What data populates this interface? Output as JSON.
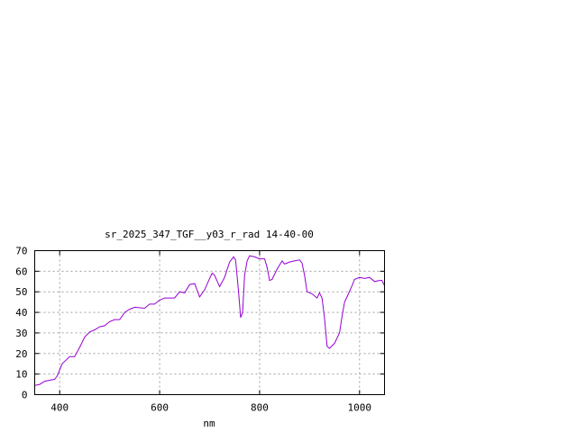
{
  "chart_data": {
    "type": "line",
    "title": "sr_2025_347_TGF__y03_r_rad 14-40-00",
    "xlabel": "nm",
    "ylabel": "",
    "xlim": [
      350,
      1050
    ],
    "ylim": [
      0,
      70
    ],
    "xticks": [
      400,
      600,
      800,
      1000
    ],
    "yticks": [
      0,
      10,
      20,
      30,
      40,
      50,
      60,
      70
    ],
    "grid": true,
    "color": "#9400d3",
    "x": [
      350,
      360,
      370,
      380,
      390,
      395,
      400,
      405,
      420,
      430,
      440,
      450,
      460,
      470,
      480,
      490,
      500,
      510,
      520,
      530,
      540,
      550,
      570,
      580,
      590,
      600,
      610,
      620,
      630,
      640,
      650,
      660,
      670,
      680,
      690,
      700,
      705,
      710,
      720,
      730,
      740,
      748,
      752,
      758,
      762,
      766,
      770,
      775,
      780,
      790,
      800,
      810,
      815,
      820,
      825,
      835,
      845,
      850,
      860,
      870,
      880,
      885,
      890,
      895,
      905,
      915,
      920,
      925,
      930,
      935,
      940,
      950,
      960,
      965,
      970,
      975,
      985,
      990,
      1000,
      1010,
      1020,
      1030,
      1040,
      1045,
      1050
    ],
    "y": [
      4.5,
      5,
      6.5,
      7,
      7.5,
      9,
      12,
      15,
      18.5,
      18.5,
      23,
      28,
      30.5,
      31.5,
      33,
      33.5,
      35.5,
      36.5,
      36.5,
      40,
      41.5,
      42.5,
      42,
      44,
      44,
      46,
      47,
      47,
      47,
      50,
      49.5,
      53.5,
      54,
      47.5,
      51,
      56.5,
      59,
      58,
      52.5,
      57,
      64.5,
      67,
      65.5,
      50,
      37.5,
      40,
      58,
      65,
      67.5,
      67,
      66,
      66,
      62,
      55.5,
      56,
      61,
      65,
      63.5,
      64.5,
      65,
      65.5,
      64,
      58,
      50,
      49,
      47,
      49.5,
      47,
      37,
      23.5,
      22.5,
      25,
      30,
      38,
      45,
      47.5,
      53,
      56,
      57,
      56.5,
      57,
      55,
      55.5,
      55.5,
      53
    ]
  }
}
